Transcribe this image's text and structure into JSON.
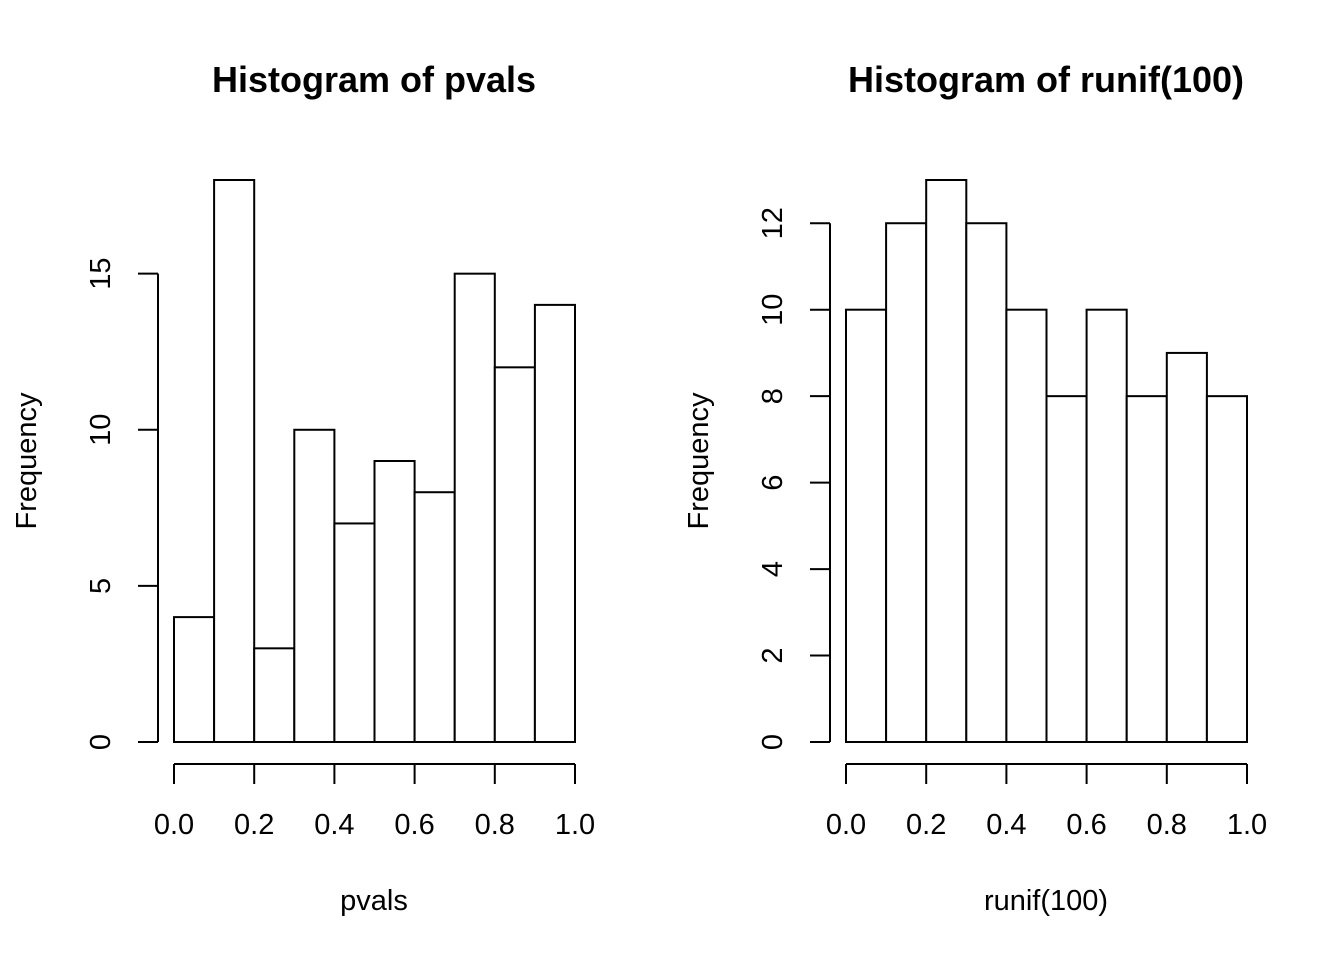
{
  "chart_data": [
    {
      "type": "bar",
      "title": "Histogram of pvals",
      "xlabel": "pvals",
      "ylabel": "Frequency",
      "bin_edges": [
        0.0,
        0.1,
        0.2,
        0.3,
        0.4,
        0.5,
        0.6,
        0.7,
        0.8,
        0.9,
        1.0
      ],
      "values": [
        4,
        18,
        3,
        10,
        7,
        9,
        8,
        15,
        12,
        14
      ],
      "xticks": [
        0.0,
        0.2,
        0.4,
        0.6,
        0.8,
        1.0
      ],
      "xtick_labels": [
        "0.0",
        "0.2",
        "0.4",
        "0.6",
        "0.8",
        "1.0"
      ],
      "yticks": [
        0,
        5,
        10,
        15
      ],
      "ytick_labels": [
        "0",
        "5",
        "10",
        "15"
      ],
      "ylim": [
        0,
        18
      ],
      "grid": false
    },
    {
      "type": "bar",
      "title": "Histogram of runif(100)",
      "xlabel": "runif(100)",
      "ylabel": "Frequency",
      "bin_edges": [
        0.0,
        0.1,
        0.2,
        0.3,
        0.4,
        0.5,
        0.6,
        0.7,
        0.8,
        0.9,
        1.0
      ],
      "values": [
        10,
        12,
        13,
        12,
        10,
        8,
        10,
        8,
        9,
        8
      ],
      "xticks": [
        0.0,
        0.2,
        0.4,
        0.6,
        0.8,
        1.0
      ],
      "xtick_labels": [
        "0.0",
        "0.2",
        "0.4",
        "0.6",
        "0.8",
        "1.0"
      ],
      "yticks": [
        0,
        2,
        4,
        6,
        8,
        10,
        12
      ],
      "ytick_labels": [
        "0",
        "2",
        "4",
        "6",
        "8",
        "10",
        "12"
      ],
      "ylim": [
        0,
        13
      ],
      "grid": false
    }
  ]
}
